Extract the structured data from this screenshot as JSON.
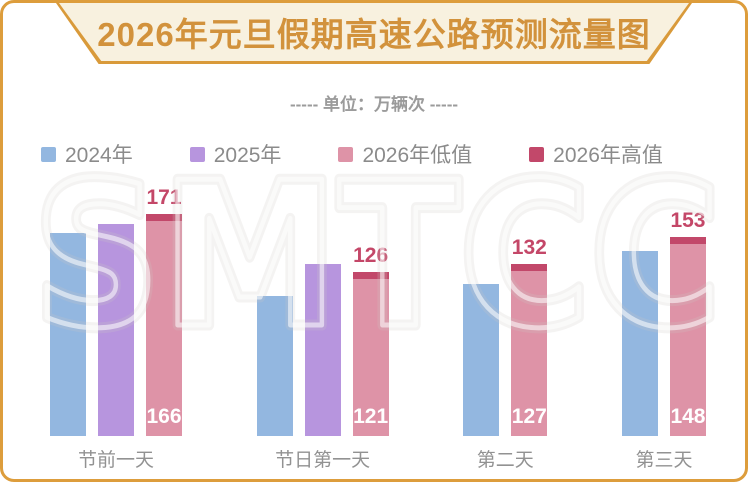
{
  "title": "2026年元旦假期高速公路预测流量图",
  "subtitle": "----- 单位：万辆次 -----",
  "watermark": "SMTCC",
  "colors": {
    "frame_border": "#dd9d3c",
    "banner_bg": "#f8f1df",
    "title_text": "#d2923c",
    "muted_text": "#8f8f8f",
    "blue_2024": "#93b7e0",
    "purple_2025": "#b795de",
    "pink_2026_low": "#de93a7",
    "crimson_2026_high": "#c2486a",
    "value_label_red": "#c44768",
    "low_value_label": "#ffffff"
  },
  "legend": [
    {
      "label": "2024年",
      "color": "#93b7e0"
    },
    {
      "label": "2025年",
      "color": "#b795de"
    },
    {
      "label": "2026年低值",
      "color": "#de93a7"
    },
    {
      "label": "2026年高值",
      "color": "#c2486a"
    }
  ],
  "chart_data": {
    "type": "bar",
    "title": "2026年元旦假期高速公路预测流量图",
    "unit": "万辆次",
    "categories": [
      "节前一天",
      "节日第一天",
      "第二天",
      "第三天"
    ],
    "series": [
      {
        "name": "2024年",
        "color": "#93b7e0",
        "values": [
          156,
          108,
          117,
          142
        ],
        "labels_shown": false,
        "note": "estimated from bar heights; no data labels in image"
      },
      {
        "name": "2025年",
        "color": "#b795de",
        "values": [
          163,
          132,
          null,
          null
        ],
        "labels_shown": false,
        "note": "estimated from bar heights; bars absent for 第二天 and 第三天"
      },
      {
        "name": "2026年低值",
        "color": "#de93a7",
        "values": [
          166,
          121,
          127,
          148
        ],
        "labels_shown": true
      },
      {
        "name": "2026年高值",
        "color": "#c2486a",
        "values": [
          171,
          126,
          132,
          153
        ],
        "labels_shown": true
      }
    ],
    "high_value_labels": [
      171,
      126,
      132,
      153
    ],
    "low_value_labels": [
      166,
      121,
      127,
      148
    ],
    "ylim": [
      0,
      180
    ],
    "grid": false,
    "legend_position": "top"
  }
}
